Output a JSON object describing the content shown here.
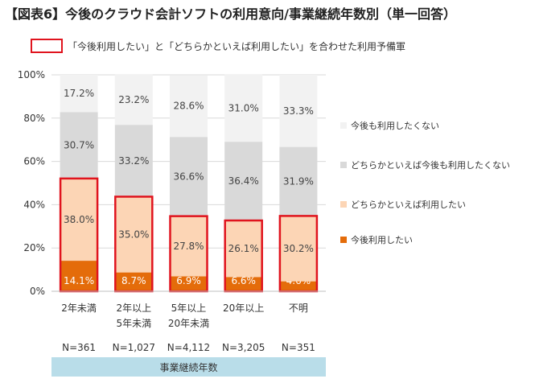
{
  "title": "【図表6】今後のクラウド会計ソフトの利用意向/事業継続年数別（単一回答）",
  "note": "「今後利用したい」と「どちらかといえば利用したい」を合わせた利用予備軍",
  "colors": {
    "s1": "#e46c0a",
    "s2": "#fcd5b5",
    "s3": "#d9d9d9",
    "s4": "#f2f2f2",
    "highlight": "#e0141e",
    "axis_band": "#b9dde9"
  },
  "chart_data": {
    "type": "bar",
    "stacked": true,
    "categories": [
      [
        "2年未満"
      ],
      [
        "2年以上",
        "5年未満"
      ],
      [
        "5年以上",
        "20年未満"
      ],
      [
        "20年以上"
      ],
      [
        "不明"
      ]
    ],
    "n_labels": [
      "N=361",
      "N=1,027",
      "N=4,112",
      "N=3,205",
      "N=351"
    ],
    "xlabel": "事業継続年数",
    "ylim": [
      0,
      100
    ],
    "yticks": [
      "0%",
      "20%",
      "40%",
      "60%",
      "80%",
      "100%"
    ],
    "series": [
      {
        "name": "今後利用したい",
        "values": [
          14.1,
          8.7,
          6.9,
          6.6,
          4.6
        ],
        "labels": [
          "14.1%",
          "8.7%",
          "6.9%",
          "6.6%",
          "4.6%"
        ],
        "color_key": "s1"
      },
      {
        "name": "どちらかといえば利用したい",
        "values": [
          38.0,
          35.0,
          27.8,
          26.1,
          30.2
        ],
        "labels": [
          "38.0%",
          "35.0%",
          "27.8%",
          "26.1%",
          "30.2%"
        ],
        "color_key": "s2"
      },
      {
        "name": "どちらかといえば今後も利用したくない",
        "values": [
          30.7,
          33.2,
          36.6,
          36.4,
          31.9
        ],
        "labels": [
          "30.7%",
          "33.2%",
          "36.6%",
          "36.4%",
          "31.9%"
        ],
        "color_key": "s3"
      },
      {
        "name": "今後も利用したくない",
        "values": [
          17.2,
          23.2,
          28.6,
          31.0,
          33.3
        ],
        "labels": [
          "17.2%",
          "23.2%",
          "28.6%",
          "31.0%",
          "33.3%"
        ],
        "color_key": "s4"
      }
    ],
    "highlight": "今後利用したい + どちらかといえば利用したい",
    "legend_position": "right"
  }
}
